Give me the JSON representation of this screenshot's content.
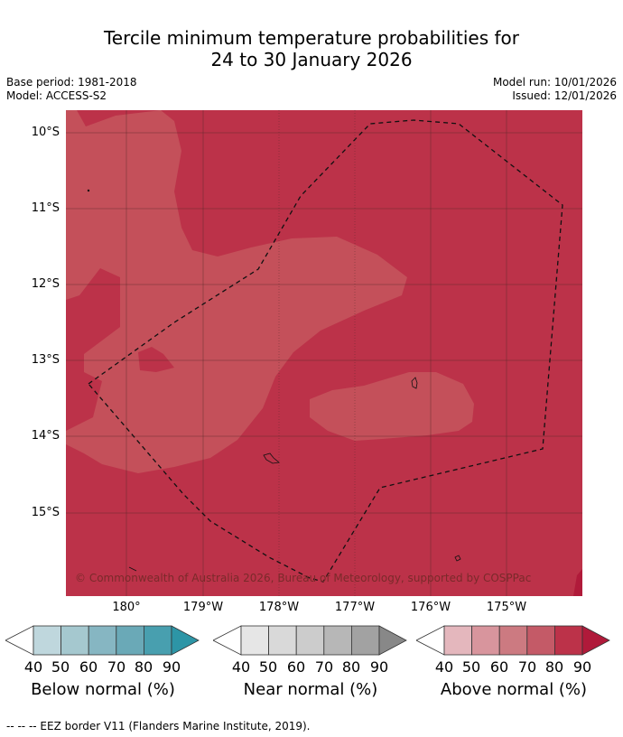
{
  "title_line1": "Tercile minimum temperature probabilities for",
  "title_line2": "24 to 30 January 2026",
  "meta": {
    "base_period": "Base period: 1981-2018",
    "model": "Model: ACCESS-S2",
    "model_run": "Model run: 10/01/2026",
    "issued": "Issued: 12/01/2026"
  },
  "map": {
    "latitudes": [
      "10°S",
      "11°S",
      "12°S",
      "13°S",
      "14°S",
      "15°S"
    ],
    "longitudes": [
      "180°",
      "179°W",
      "178°W",
      "177°W",
      "176°W",
      "175°W"
    ],
    "copyright": "© Commonwealth of Australia 2026, Bureau of Meteorology, supported by COSPPac",
    "colors": {
      "above_80": "#bc3249",
      "above_70": "#c4505a",
      "above_90": "#b01a3a",
      "grid": "#5a2a2a"
    }
  },
  "colorbars": [
    {
      "name": "below",
      "label": "Below normal (%)",
      "ticks": [
        "40",
        "50",
        "60",
        "70",
        "80",
        "90"
      ],
      "colors": [
        "#bfd7dd",
        "#a5c8cf",
        "#86b6c2",
        "#6aa9b7",
        "#489faf",
        "#2d95a6"
      ]
    },
    {
      "name": "near",
      "label": "Near normal (%)",
      "ticks": [
        "40",
        "50",
        "60",
        "70",
        "80",
        "90"
      ],
      "colors": [
        "#e6e6e6",
        "#d9d9d9",
        "#cccccc",
        "#b7b7b7",
        "#a2a2a2",
        "#888888"
      ]
    },
    {
      "name": "above",
      "label": "Above normal (%)",
      "ticks": [
        "40",
        "50",
        "60",
        "70",
        "80",
        "90"
      ],
      "colors": [
        "#e4b7bd",
        "#d8959d",
        "#cc7a81",
        "#c45a67",
        "#bc3249",
        "#b01a3a"
      ]
    }
  ],
  "footer": "-- -- -- EEZ border V11 (Flanders Marine Institute, 2019)."
}
